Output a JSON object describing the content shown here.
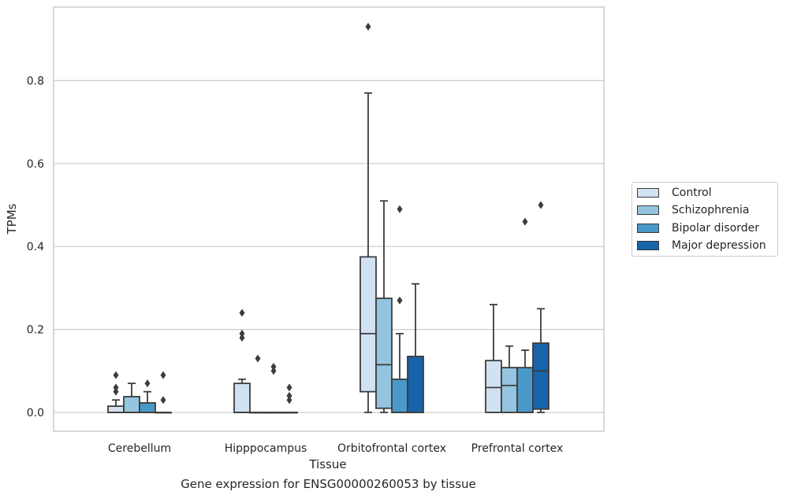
{
  "chart_data": {
    "type": "box",
    "title": "",
    "caption": "Gene expression for ENSG00000260053 by tissue",
    "xlabel": "Tissue",
    "ylabel": "TPMs",
    "ylim": [
      -0.045,
      0.98
    ],
    "yticks": [
      0.0,
      0.2,
      0.4,
      0.6,
      0.8
    ],
    "ytick_labels": [
      "0.0",
      "0.2",
      "0.4",
      "0.6",
      "0.8"
    ],
    "grid": "horizontal",
    "legend_position": "right",
    "categories": [
      "Cerebellum",
      "Hipppocampus",
      "Orbitofrontal cortex",
      "Prefrontal cortex"
    ],
    "series": [
      {
        "name": "Control",
        "color": "#d0e1f2",
        "boxes": [
          {
            "q1": 0.0,
            "median": 0.0,
            "q3": 0.015,
            "whisker_low": 0.0,
            "whisker_high": 0.03,
            "outliers": [
              0.05,
              0.06,
              0.09
            ]
          },
          {
            "q1": 0.0,
            "median": 0.0,
            "q3": 0.07,
            "whisker_low": 0.0,
            "whisker_high": 0.08,
            "outliers": [
              0.18,
              0.19,
              0.24
            ]
          },
          {
            "q1": 0.05,
            "median": 0.19,
            "q3": 0.375,
            "whisker_low": 0.0,
            "whisker_high": 0.77,
            "outliers": [
              0.93
            ]
          },
          {
            "q1": 0.0,
            "median": 0.06,
            "q3": 0.125,
            "whisker_low": 0.0,
            "whisker_high": 0.26,
            "outliers": []
          }
        ]
      },
      {
        "name": "Schizophrenia",
        "color": "#94c4df",
        "boxes": [
          {
            "q1": 0.0,
            "median": 0.0,
            "q3": 0.038,
            "whisker_low": 0.0,
            "whisker_high": 0.07,
            "outliers": []
          },
          {
            "q1": 0.0,
            "median": 0.0,
            "q3": 0.0,
            "whisker_low": 0.0,
            "whisker_high": 0.0,
            "outliers": [
              0.13
            ]
          },
          {
            "q1": 0.01,
            "median": 0.115,
            "q3": 0.275,
            "whisker_low": 0.0,
            "whisker_high": 0.51,
            "outliers": []
          },
          {
            "q1": 0.0,
            "median": 0.065,
            "q3": 0.108,
            "whisker_low": 0.0,
            "whisker_high": 0.16,
            "outliers": []
          }
        ]
      },
      {
        "name": "Bipolar disorder",
        "color": "#4a98c9",
        "boxes": [
          {
            "q1": 0.0,
            "median": 0.0,
            "q3": 0.023,
            "whisker_low": 0.0,
            "whisker_high": 0.05,
            "outliers": [
              0.07
            ]
          },
          {
            "q1": 0.0,
            "median": 0.0,
            "q3": 0.0,
            "whisker_low": 0.0,
            "whisker_high": 0.0,
            "outliers": [
              0.1,
              0.11
            ]
          },
          {
            "q1": 0.0,
            "median": 0.0,
            "q3": 0.08,
            "whisker_low": 0.0,
            "whisker_high": 0.19,
            "outliers": [
              0.27,
              0.49
            ]
          },
          {
            "q1": 0.0,
            "median": 0.0,
            "q3": 0.108,
            "whisker_low": 0.0,
            "whisker_high": 0.15,
            "outliers": [
              0.46
            ]
          }
        ]
      },
      {
        "name": "Major depression",
        "color": "#1764ab",
        "boxes": [
          {
            "q1": 0.0,
            "median": 0.0,
            "q3": 0.0,
            "whisker_low": 0.0,
            "whisker_high": 0.0,
            "outliers": [
              0.03,
              0.09
            ]
          },
          {
            "q1": 0.0,
            "median": 0.0,
            "q3": 0.0,
            "whisker_low": 0.0,
            "whisker_high": 0.0,
            "outliers": [
              0.04
            ]
          },
          {
            "q1": 0.0,
            "median": 0.0,
            "q3": 0.135,
            "whisker_low": 0.0,
            "whisker_high": 0.31,
            "outliers": []
          },
          {
            "q1": 0.008,
            "median": 0.1,
            "q3": 0.167,
            "whisker_low": 0.0,
            "whisker_high": 0.25,
            "outliers": [
              0.5
            ]
          }
        ]
      }
    ]
  },
  "extra_outliers": [
    {
      "category": 1,
      "series": 3,
      "values": [
        0.03,
        0.06
      ]
    }
  ]
}
